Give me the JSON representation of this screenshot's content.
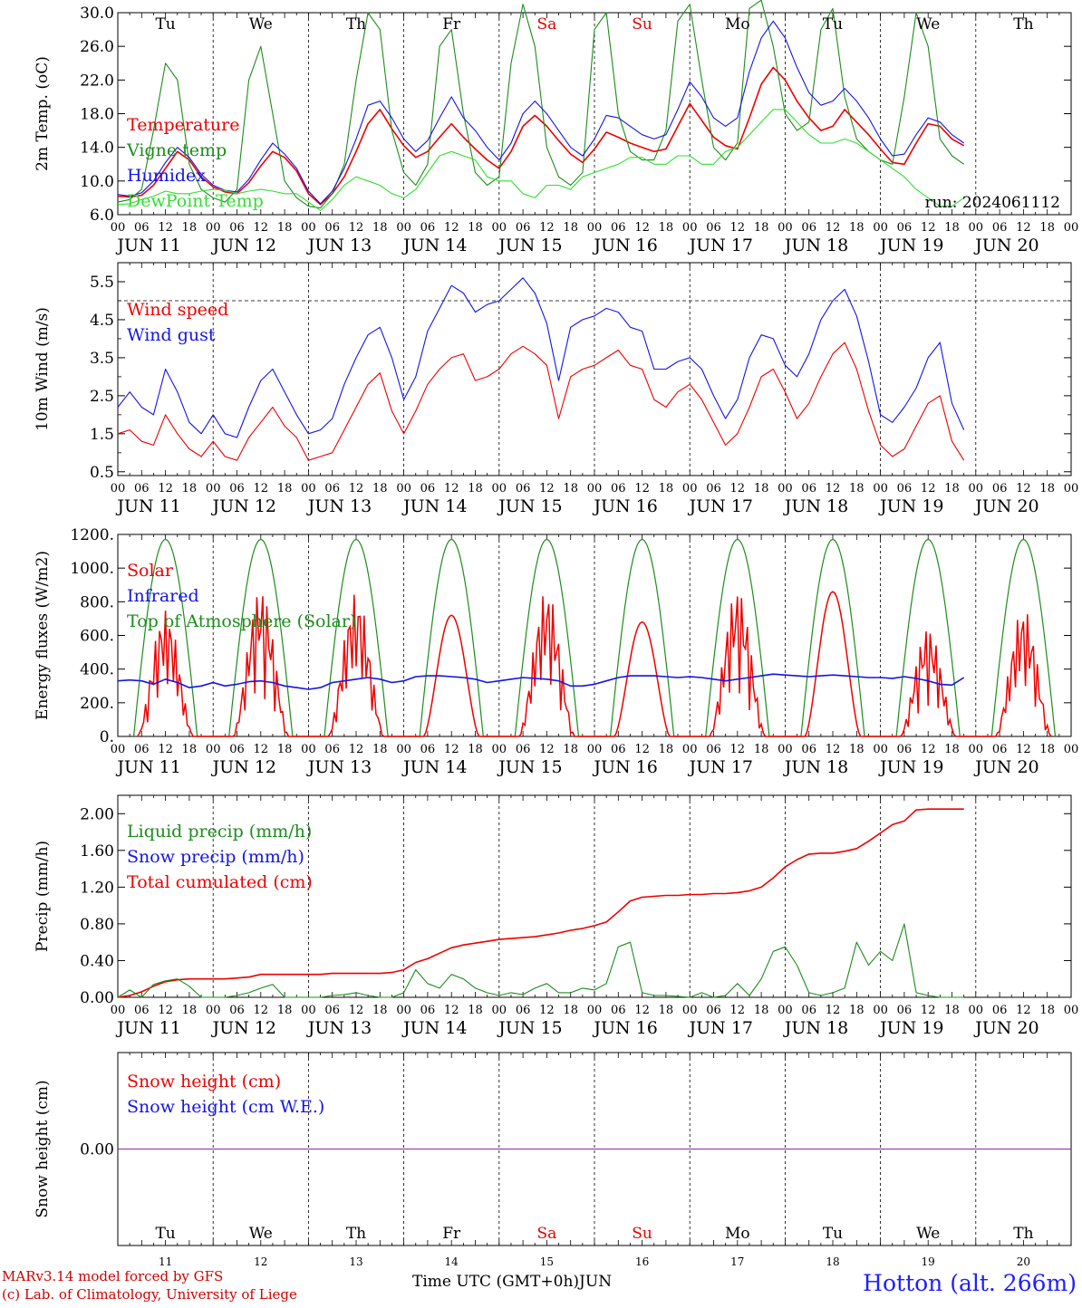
{
  "meteogram": {
    "days": [
      "Tu",
      "We",
      "Th",
      "Fr",
      "Sa",
      "Su",
      "Mo",
      "Tu",
      "We",
      "Th"
    ],
    "day_colors": [
      "#000000",
      "#000000",
      "#000000",
      "#000000",
      "#e00000",
      "#e00000",
      "#000000",
      "#000000",
      "#000000",
      "#000000"
    ],
    "dates": [
      "JUN 11",
      "JUN 12",
      "JUN 13",
      "JUN 14",
      "JUN 15",
      "JUN 16",
      "JUN 17",
      "JUN 18",
      "JUN 19",
      "JUN 20"
    ],
    "date_numbers": [
      "11",
      "12",
      "13",
      "14",
      "15",
      "16",
      "17",
      "18",
      "19",
      "20"
    ],
    "hour_labels": [
      "00",
      "06",
      "12",
      "18"
    ],
    "final_hour_label": "00",
    "colors": {
      "red": "#ee0000",
      "green": "#1c8c1c",
      "blue": "#1414e6",
      "light_green": "#33dd33",
      "purple": "#8a2a9a",
      "axis": "#000000"
    }
  },
  "chart_data": [
    {
      "id": "temp",
      "type": "line",
      "ylabel": "2m Temp. (oC)",
      "y_ticks": [
        "6.0",
        "10.0",
        "14.0",
        "18.0",
        "22.0",
        "26.0",
        "30.0"
      ],
      "ylim": [
        6,
        30
      ],
      "x_range_hours": [
        0,
        240
      ],
      "annotation": "run: 2024061112",
      "legend": [
        {
          "name": "Temperature",
          "color": "#ee0000"
        },
        {
          "name": "Vigne temp",
          "color": "#1c8c1c"
        },
        {
          "name": "Humidex",
          "color": "#1414e6"
        },
        {
          "name": "DewPoint Temp",
          "color": "#33dd33"
        }
      ],
      "series": [
        {
          "name": "Temperature",
          "color": "#ee0000",
          "step": 3,
          "values": [
            8.2,
            8.1,
            8.3,
            9.5,
            11.5,
            13.5,
            12.5,
            10.5,
            9.3,
            8.7,
            8.5,
            9.8,
            11.8,
            13.5,
            12.8,
            11.2,
            8.5,
            7.2,
            8.5,
            10.5,
            13.5,
            16.8,
            18.5,
            16.2,
            14.2,
            12.8,
            13.5,
            15.2,
            16.8,
            15.2,
            13.8,
            12.5,
            11.5,
            13.5,
            16.5,
            17.8,
            16.5,
            14.8,
            13.2,
            12.2,
            13.8,
            15.8,
            15.2,
            14.5,
            14.0,
            13.5,
            13.8,
            16.5,
            19.2,
            17.2,
            15.2,
            14.2,
            13.8,
            17.5,
            21.5,
            23.5,
            22.0,
            19.5,
            17.5,
            16.0,
            16.5,
            18.5,
            17.0,
            15.5,
            13.8,
            12.2,
            12.0,
            14.5,
            16.8,
            16.5,
            15.0,
            14.2
          ]
        },
        {
          "name": "Vigne temp",
          "color": "#1c8c1c",
          "step": 3,
          "values": [
            7.5,
            7.8,
            9.0,
            16.0,
            24.0,
            22.0,
            12.0,
            9.0,
            8.0,
            7.5,
            9.0,
            22.0,
            26.0,
            18.0,
            10.0,
            8.0,
            7.0,
            6.8,
            8.5,
            12.0,
            22.0,
            30.0,
            28.0,
            16.0,
            11.0,
            9.5,
            12.0,
            26.0,
            28.0,
            18.0,
            11.0,
            9.5,
            10.5,
            24.0,
            31.0,
            26.0,
            14.0,
            10.5,
            9.5,
            11.0,
            28.0,
            30.0,
            18.0,
            13.5,
            12.5,
            12.5,
            16.0,
            29.0,
            31.0,
            22.0,
            14.0,
            12.5,
            14.5,
            30.5,
            31.5,
            26.0,
            18.0,
            16.0,
            17.0,
            28.0,
            30.5,
            20.0,
            15.0,
            13.5,
            12.5,
            12.0,
            20.0,
            30.0,
            26.0,
            15.0,
            13.0,
            12.0
          ]
        },
        {
          "name": "Humidex",
          "color": "#1414e6",
          "step": 3,
          "values": [
            8.4,
            8.2,
            8.6,
            10.0,
            12.2,
            14.0,
            12.8,
            10.8,
            9.5,
            8.9,
            8.7,
            10.2,
            12.5,
            14.5,
            13.2,
            11.5,
            8.8,
            7.3,
            8.8,
            11.5,
            15.0,
            19.0,
            19.5,
            17.5,
            15.0,
            13.5,
            14.8,
            17.5,
            20.0,
            17.5,
            16.0,
            14.0,
            12.5,
            14.5,
            18.0,
            19.5,
            18.0,
            16.0,
            14.0,
            13.0,
            15.0,
            17.8,
            17.5,
            16.5,
            15.5,
            15.0,
            15.5,
            18.5,
            21.8,
            20.0,
            17.5,
            16.5,
            17.5,
            23.0,
            27.0,
            29.0,
            27.0,
            23.5,
            20.5,
            19.0,
            19.5,
            21.0,
            19.5,
            17.5,
            15.0,
            13.0,
            13.2,
            15.5,
            17.5,
            17.0,
            15.5,
            14.5
          ]
        },
        {
          "name": "DewPoint Temp",
          "color": "#33dd33",
          "step": 3,
          "values": [
            7.2,
            7.3,
            7.8,
            8.2,
            8.8,
            8.5,
            8.5,
            8.8,
            9.0,
            8.9,
            8.5,
            8.8,
            9.0,
            8.8,
            8.5,
            8.5,
            7.5,
            6.5,
            7.8,
            9.5,
            10.5,
            10.0,
            9.5,
            8.5,
            8.0,
            9.0,
            11.0,
            13.0,
            13.5,
            13.0,
            12.5,
            10.5,
            10.0,
            10.0,
            8.5,
            8.0,
            9.5,
            9.5,
            9.0,
            10.5,
            11.0,
            11.5,
            12.0,
            12.8,
            12.8,
            12.0,
            12.0,
            13.0,
            13.0,
            12.0,
            12.0,
            13.5,
            14.0,
            15.5,
            17.0,
            18.5,
            18.5,
            17.0,
            15.5,
            14.5,
            14.5,
            15.0,
            14.5,
            13.5,
            12.5,
            11.5,
            10.5,
            9.0,
            8.0,
            7.0,
            7.0,
            8.0
          ]
        }
      ]
    },
    {
      "id": "wind",
      "type": "line",
      "ylabel": "10m Wind (m/s)",
      "y_ticks": [
        "0.5",
        "1.5",
        "2.5",
        "3.5",
        "4.5",
        "5.5"
      ],
      "ylim": [
        0.4,
        6.0
      ],
      "threshold_line": 5.0,
      "legend": [
        {
          "name": "Wind speed",
          "color": "#ee0000"
        },
        {
          "name": "Wind gust",
          "color": "#1414e6"
        }
      ],
      "series": [
        {
          "name": "Wind speed",
          "color": "#ee0000",
          "step": 3,
          "values": [
            1.5,
            1.6,
            1.3,
            1.2,
            2.0,
            1.5,
            1.1,
            0.9,
            1.3,
            0.9,
            0.8,
            1.4,
            1.8,
            2.2,
            1.7,
            1.4,
            0.8,
            0.9,
            1.0,
            1.6,
            2.2,
            2.8,
            3.1,
            2.1,
            1.5,
            2.1,
            2.8,
            3.2,
            3.5,
            3.6,
            2.9,
            3.0,
            3.2,
            3.6,
            3.8,
            3.6,
            3.3,
            1.9,
            3.0,
            3.2,
            3.3,
            3.5,
            3.7,
            3.3,
            3.2,
            2.4,
            2.2,
            2.6,
            2.8,
            2.4,
            1.8,
            1.2,
            1.5,
            2.2,
            3.0,
            3.2,
            2.6,
            1.9,
            2.3,
            3.0,
            3.6,
            3.9,
            3.2,
            2.1,
            1.2,
            0.9,
            1.1,
            1.7,
            2.3,
            2.5,
            1.3,
            0.8
          ]
        },
        {
          "name": "Wind gust",
          "color": "#1414e6",
          "step": 3,
          "values": [
            2.2,
            2.6,
            2.2,
            2.0,
            3.2,
            2.6,
            1.8,
            1.5,
            2.0,
            1.5,
            1.4,
            2.2,
            2.9,
            3.2,
            2.6,
            2.0,
            1.5,
            1.6,
            1.9,
            2.8,
            3.5,
            4.1,
            4.3,
            3.5,
            2.4,
            3.0,
            4.2,
            4.8,
            5.4,
            5.2,
            4.7,
            4.9,
            5.0,
            5.3,
            5.6,
            5.2,
            4.4,
            2.9,
            4.3,
            4.5,
            4.6,
            4.8,
            4.7,
            4.3,
            4.2,
            3.2,
            3.2,
            3.4,
            3.5,
            3.2,
            2.5,
            1.9,
            2.4,
            3.5,
            4.1,
            4.0,
            3.3,
            3.0,
            3.6,
            4.5,
            5.0,
            5.3,
            4.6,
            3.4,
            2.0,
            1.8,
            2.2,
            2.7,
            3.5,
            3.9,
            2.3,
            1.6
          ]
        }
      ]
    },
    {
      "id": "energy",
      "type": "line",
      "ylabel": "Energy fluxes (W/m2)",
      "y_ticks": [
        "0.",
        "200.",
        "400.",
        "600.",
        "800.",
        "1000.",
        "1200."
      ],
      "ylim": [
        0,
        1200
      ],
      "legend": [
        {
          "name": "Solar",
          "color": "#ee0000"
        },
        {
          "name": "Infrared",
          "color": "#1414e6"
        },
        {
          "name": "Top of Atmosphere (Solar)",
          "color": "#1c8c1c"
        }
      ],
      "toa_peak": 1170,
      "toa_hours": [
        4,
        20
      ],
      "solar_daily_peak": [
        750,
        880,
        850,
        720,
        870,
        680,
        880,
        860,
        650,
        760
      ],
      "solar_daily_shape": [
        "spiky",
        "spiky",
        "spiky",
        "smooth",
        "spiky",
        "smooth",
        "spiky",
        "smooth",
        "spiky",
        "spiky"
      ],
      "series": [
        {
          "name": "Infrared",
          "color": "#1414e6",
          "step": 3,
          "values": [
            330,
            335,
            330,
            310,
            340,
            320,
            290,
            300,
            320,
            300,
            310,
            325,
            330,
            320,
            300,
            290,
            280,
            290,
            320,
            330,
            340,
            350,
            340,
            320,
            330,
            355,
            360,
            360,
            355,
            350,
            340,
            320,
            330,
            340,
            350,
            345,
            340,
            330,
            300,
            300,
            310,
            330,
            350,
            360,
            360,
            360,
            355,
            350,
            355,
            350,
            340,
            330,
            340,
            350,
            360,
            370,
            365,
            360,
            355,
            360,
            365,
            360,
            355,
            350,
            350,
            345,
            355,
            345,
            330,
            310,
            305,
            350
          ]
        }
      ]
    },
    {
      "id": "precip",
      "type": "line",
      "ylabel": "Precip (mm/h)",
      "y_ticks": [
        "0.00",
        "0.40",
        "0.80",
        "1.20",
        "1.60",
        "2.00"
      ],
      "ylim": [
        0,
        2.2
      ],
      "legend": [
        {
          "name": "Liquid precip (mm/h)",
          "color": "#1c8c1c"
        },
        {
          "name": "Snow precip (mm/h)",
          "color": "#1414e6"
        },
        {
          "name": "Total cumulated (cm)",
          "color": "#ee0000"
        }
      ],
      "series": [
        {
          "name": "Total cumulated (cm)",
          "color": "#ee0000",
          "step": 3,
          "values": [
            0.0,
            0.02,
            0.06,
            0.12,
            0.17,
            0.19,
            0.2,
            0.2,
            0.2,
            0.2,
            0.21,
            0.22,
            0.25,
            0.25,
            0.25,
            0.25,
            0.25,
            0.25,
            0.26,
            0.26,
            0.26,
            0.26,
            0.26,
            0.27,
            0.3,
            0.38,
            0.42,
            0.48,
            0.54,
            0.57,
            0.59,
            0.61,
            0.63,
            0.64,
            0.65,
            0.66,
            0.68,
            0.7,
            0.73,
            0.75,
            0.78,
            0.82,
            0.93,
            1.05,
            1.09,
            1.1,
            1.11,
            1.11,
            1.12,
            1.12,
            1.13,
            1.13,
            1.14,
            1.16,
            1.2,
            1.3,
            1.42,
            1.5,
            1.56,
            1.57,
            1.57,
            1.59,
            1.62,
            1.7,
            1.79,
            1.88,
            1.92,
            2.04,
            2.05,
            2.05,
            2.05,
            2.05
          ]
        },
        {
          "name": "Liquid precip (mm/h)",
          "color": "#1c8c1c",
          "step": 3,
          "values": [
            0.0,
            0.08,
            0.0,
            0.14,
            0.18,
            0.2,
            0.12,
            0.0,
            0.0,
            0.0,
            0.02,
            0.05,
            0.1,
            0.14,
            0.0,
            0.0,
            0.0,
            0.0,
            0.02,
            0.03,
            0.05,
            0.02,
            0.0,
            0.0,
            0.05,
            0.3,
            0.15,
            0.1,
            0.25,
            0.2,
            0.1,
            0.05,
            0.02,
            0.05,
            0.03,
            0.1,
            0.15,
            0.05,
            0.05,
            0.1,
            0.08,
            0.15,
            0.55,
            0.6,
            0.05,
            0.02,
            0.02,
            0.01,
            0.0,
            0.05,
            0.0,
            0.02,
            0.15,
            0.02,
            0.2,
            0.5,
            0.55,
            0.35,
            0.05,
            0.02,
            0.05,
            0.1,
            0.6,
            0.35,
            0.5,
            0.4,
            0.8,
            0.05,
            0.02,
            0.0,
            0.0,
            0.0
          ]
        }
      ]
    },
    {
      "id": "snow",
      "type": "line",
      "ylabel": "Snow height (cm)",
      "y_ticks": [
        "0.00"
      ],
      "ylim": [
        -1,
        1
      ],
      "legend": [
        {
          "name": "Snow height (cm)",
          "color": "#ee0000"
        },
        {
          "name": "Snow height (cm W.E.)",
          "color": "#1414e6"
        }
      ],
      "series": [
        {
          "name": "Snow height (cm)",
          "color": "#8a2a9a",
          "step": 240,
          "values": [
            0.0,
            0.0
          ]
        }
      ]
    }
  ],
  "footer": {
    "credit_line1": "MARv3.14 model forced by GFS",
    "credit_line2": "(c) Lab. of Climatology, University of Liege",
    "axis_title": "Time UTC (GMT+0h)",
    "axis_month": "JUN",
    "station": "Hotton (alt. 266m)"
  }
}
